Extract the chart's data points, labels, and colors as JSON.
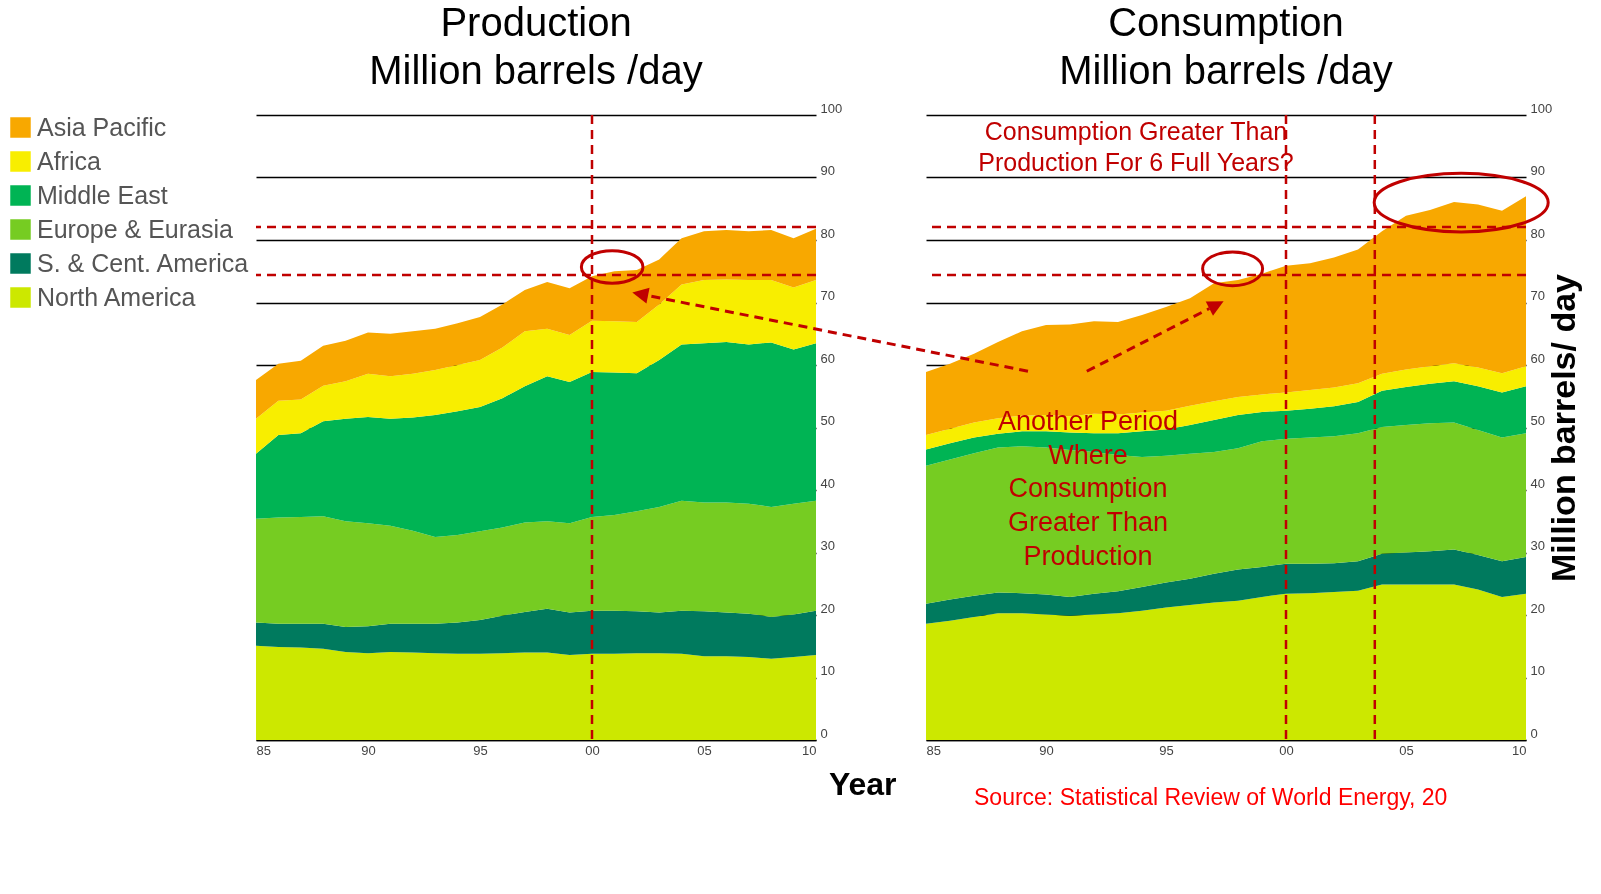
{
  "chart_data": [
    {
      "type": "area",
      "title": "Production",
      "subtitle": "Million barrels /day",
      "xlabel": "Year",
      "stacked": true,
      "grid": "y",
      "legend": "left",
      "x": [
        1985,
        1986,
        1987,
        1988,
        1989,
        1990,
        1991,
        1992,
        1993,
        1994,
        1995,
        1996,
        1997,
        1998,
        1999,
        2000,
        2001,
        2002,
        2003,
        2004,
        2005,
        2006,
        2007,
        2008,
        2009,
        2010
      ],
      "xlim": [
        1985,
        2010
      ],
      "xticks": [
        {
          "value": 1985,
          "label": "85"
        },
        {
          "value": 1990,
          "label": "90"
        },
        {
          "value": 1995,
          "label": "95"
        },
        {
          "value": 2000,
          "label": "00"
        },
        {
          "value": 2005,
          "label": "05"
        },
        {
          "value": 2010,
          "label": "10"
        }
      ],
      "ylim": [
        0,
        100
      ],
      "yticks": [
        0,
        10,
        20,
        30,
        40,
        50,
        60,
        70,
        80,
        90,
        100
      ],
      "series": [
        {
          "name": "North America",
          "color": "#cce800",
          "values": [
            15.1,
            14.9,
            14.8,
            14.6,
            14.1,
            13.9,
            14.1,
            14.0,
            13.9,
            13.8,
            13.8,
            13.9,
            14.0,
            14.0,
            13.6,
            13.8,
            13.8,
            13.9,
            13.9,
            13.8,
            13.4,
            13.4,
            13.3,
            13.0,
            13.3,
            13.6
          ]
        },
        {
          "name": "S. & Cent. America",
          "color": "#007a5e",
          "values": [
            3.7,
            3.7,
            3.8,
            4.0,
            4.0,
            4.3,
            4.5,
            4.6,
            4.7,
            5.0,
            5.4,
            6.0,
            6.5,
            7.0,
            6.8,
            6.9,
            6.9,
            6.7,
            6.5,
            6.9,
            7.2,
            7.0,
            6.9,
            6.7,
            6.8,
            7.1
          ]
        },
        {
          "name": "Europe & Eurasia",
          "color": "#76cc22",
          "values": [
            16.6,
            17.0,
            17.1,
            17.2,
            16.9,
            16.5,
            15.7,
            14.9,
            13.9,
            14.0,
            14.2,
            14.1,
            14.3,
            14.0,
            14.3,
            15.0,
            15.3,
            16.0,
            16.9,
            17.6,
            17.4,
            17.6,
            17.6,
            17.6,
            17.7,
            17.6
          ]
        },
        {
          "name": "Middle East",
          "color": "#00b454",
          "values": [
            10.4,
            13.2,
            13.4,
            15.2,
            16.4,
            17.0,
            17.1,
            18.1,
            19.5,
            19.8,
            19.9,
            20.7,
            21.8,
            23.2,
            22.6,
            23.2,
            22.8,
            22.1,
            23.5,
            25.0,
            25.5,
            25.7,
            25.5,
            26.3,
            24.7,
            25.2
          ]
        },
        {
          "name": "Africa",
          "color": "#f8ee00",
          "values": [
            5.6,
            5.5,
            5.4,
            5.7,
            6.0,
            6.9,
            6.8,
            7.0,
            7.2,
            7.4,
            7.5,
            8.1,
            8.8,
            7.6,
            7.5,
            8.2,
            8.2,
            8.2,
            8.9,
            9.6,
            10.1,
            10.0,
            10.3,
            10.0,
            9.9,
            10.1
          ]
        },
        {
          "name": "Asia Pacific",
          "color": "#f8a800",
          "values": [
            6.2,
            5.9,
            6.2,
            6.4,
            6.5,
            6.6,
            6.8,
            6.8,
            6.6,
            6.7,
            6.9,
            6.9,
            6.6,
            7.5,
            7.5,
            7.1,
            8.0,
            8.3,
            7.2,
            7.4,
            7.8,
            7.9,
            7.8,
            8.0,
            7.9,
            8.2
          ]
        }
      ],
      "ref_lines": [
        {
          "axis": "y",
          "value": 74.4,
          "color": "#c00000",
          "line_style": "dashed"
        },
        {
          "axis": "y",
          "value": 82.1,
          "color": "#c00000",
          "line_style": "dashed"
        },
        {
          "axis": "x",
          "value": 2000,
          "color": "#c00000",
          "line_style": "dashed"
        }
      ]
    },
    {
      "type": "area",
      "title": "Consumption",
      "subtitle": "Million barrels /day",
      "ylabel": "Million barrels/ day",
      "stacked": true,
      "grid": "y",
      "x": [
        1985,
        1986,
        1987,
        1988,
        1989,
        1990,
        1991,
        1992,
        1993,
        1994,
        1995,
        1996,
        1997,
        1998,
        1999,
        2000,
        2001,
        2002,
        2003,
        2004,
        2005,
        2006,
        2007,
        2008,
        2009,
        2010
      ],
      "xlim": [
        1985,
        2010
      ],
      "xticks": [
        {
          "value": 1985,
          "label": "85"
        },
        {
          "value": 1990,
          "label": "90"
        },
        {
          "value": 1995,
          "label": "95"
        },
        {
          "value": 2000,
          "label": "00"
        },
        {
          "value": 2005,
          "label": "05"
        },
        {
          "value": 2010,
          "label": "10"
        }
      ],
      "ylim": [
        0,
        100
      ],
      "yticks": [
        0,
        10,
        20,
        30,
        40,
        50,
        60,
        70,
        80,
        90,
        100
      ],
      "series": [
        {
          "color": "#cce800",
          "values": [
            18.6,
            19.1,
            19.7,
            20.3,
            20.3,
            20.1,
            19.9,
            20.1,
            20.3,
            20.7,
            21.2,
            21.6,
            22.0,
            22.3,
            22.9,
            23.4,
            23.5,
            23.7,
            23.9,
            24.9,
            24.9,
            24.9,
            24.9,
            24.1,
            22.9,
            23.4
          ]
        },
        {
          "color": "#007a5e",
          "values": [
            3.2,
            3.4,
            3.4,
            3.3,
            3.2,
            3.2,
            3.0,
            3.3,
            3.5,
            3.8,
            4.0,
            4.2,
            4.6,
            5.0,
            4.8,
            4.8,
            4.7,
            4.6,
            4.7,
            4.9,
            5.1,
            5.3,
            5.6,
            5.5,
            5.7,
            5.9
          ]
        },
        {
          "color": "#76cc22",
          "values": [
            22.1,
            22.4,
            22.8,
            23.2,
            23.5,
            23.5,
            23.5,
            22.7,
            21.8,
            20.8,
            20.3,
            20.0,
            19.5,
            19.4,
            20.1,
            20.0,
            20.2,
            20.3,
            20.5,
            20.3,
            20.4,
            20.5,
            20.3,
            20.0,
            19.8,
            19.8
          ]
        },
        {
          "color": "#00b454",
          "values": [
            2.6,
            2.6,
            2.5,
            2.2,
            2.4,
            2.6,
            2.8,
            3.0,
            3.5,
            4.1,
            4.2,
            4.6,
            5.1,
            5.3,
            4.7,
            4.5,
            4.6,
            4.8,
            5.0,
            5.8,
            6.1,
            6.3,
            6.6,
            7.0,
            7.2,
            7.5
          ]
        },
        {
          "color": "#f8ee00",
          "values": [
            2.3,
            2.3,
            2.4,
            2.5,
            2.5,
            2.6,
            2.6,
            3.1,
            3.0,
            3.0,
            3.0,
            3.1,
            3.0,
            2.9,
            2.8,
            2.9,
            3.0,
            3.0,
            3.0,
            2.7,
            2.8,
            2.8,
            2.9,
            3.0,
            3.1,
            3.2
          ]
        },
        {
          "color": "#f8a800",
          "values": [
            10.1,
            10.4,
            11.0,
            12.2,
            13.5,
            14.4,
            14.7,
            14.8,
            14.8,
            15.6,
            16.6,
            17.2,
            18.9,
            18.7,
            19.3,
            20.3,
            20.3,
            20.8,
            21.4,
            22.8,
            24.6,
            25.0,
            25.8,
            26.1,
            26.0,
            27.2
          ]
        }
      ],
      "ref_lines": [
        {
          "axis": "y",
          "value": 74.4,
          "color": "#c00000",
          "line_style": "dashed"
        },
        {
          "axis": "y",
          "value": 82.1,
          "color": "#c00000",
          "line_style": "dashed"
        },
        {
          "axis": "x",
          "value": 2000,
          "color": "#c00000",
          "line_style": "dashed"
        },
        {
          "axis": "x",
          "value": 2003.7,
          "color": "#c00000",
          "line_style": "dashed"
        }
      ],
      "annotations": [
        "Consumption Greater Than\nProduction For 6 Full Years?",
        "Another Period\nWhere\nConsumption\nGreater Than\nProduction",
        "Source: Statistical Review of World Energy, 20"
      ]
    }
  ]
}
